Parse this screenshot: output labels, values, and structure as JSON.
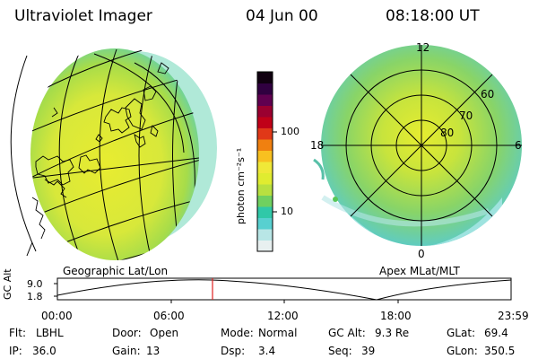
{
  "header": {
    "title": "Ultraviolet Imager",
    "date": "04 Jun 00",
    "time": "08:18:00 UT"
  },
  "colorbar": {
    "unit_label": "photon cm⁻²s⁻¹",
    "ticks": [
      "100",
      "10"
    ],
    "colors": [
      "#e8f0f0",
      "#b8e6e6",
      "#58d0d0",
      "#30c8a8",
      "#70d060",
      "#b8e040",
      "#e0ec30",
      "#f0e838",
      "#f8c020",
      "#f08010",
      "#e03818",
      "#c00018",
      "#9a0030",
      "#600050",
      "#300040",
      "#100010"
    ]
  },
  "maps": {
    "left_label": "Geographic Lat/Lon",
    "right_label": "Apex MLat/MLT",
    "polar_labels": {
      "mlt_12": "12",
      "mlt_18": "18",
      "mlt_6": "6",
      "mlt_0": "0",
      "lat_60": "60",
      "lat_70": "70",
      "lat_80": "80"
    }
  },
  "altitude_plot": {
    "ylabel": "GC Alt",
    "y_ticks": [
      "9.0",
      "1.8"
    ],
    "x_ticks": [
      "00:00",
      "06:00",
      "12:00",
      "18:00",
      "23:59"
    ],
    "cursor_time": "08:18"
  },
  "status": {
    "flt_label": "Flt:",
    "flt_value": "LBHL",
    "ip_label": "IP:",
    "ip_value": "36.0",
    "door_label": "Door:",
    "door_value": "Open",
    "gain_label": "Gain:",
    "gain_value": "13",
    "mode_label": "Mode:",
    "mode_value": "Normal",
    "dsp_label": "Dsp:",
    "dsp_value": "3.4",
    "gcalt_label": "GC Alt:",
    "gcalt_value": "9.3 Re",
    "seq_label": "Seq:",
    "seq_value": "39",
    "glat_label": "GLat:",
    "glat_value": "69.4",
    "glon_label": "GLon:",
    "glon_value": "350.5"
  }
}
